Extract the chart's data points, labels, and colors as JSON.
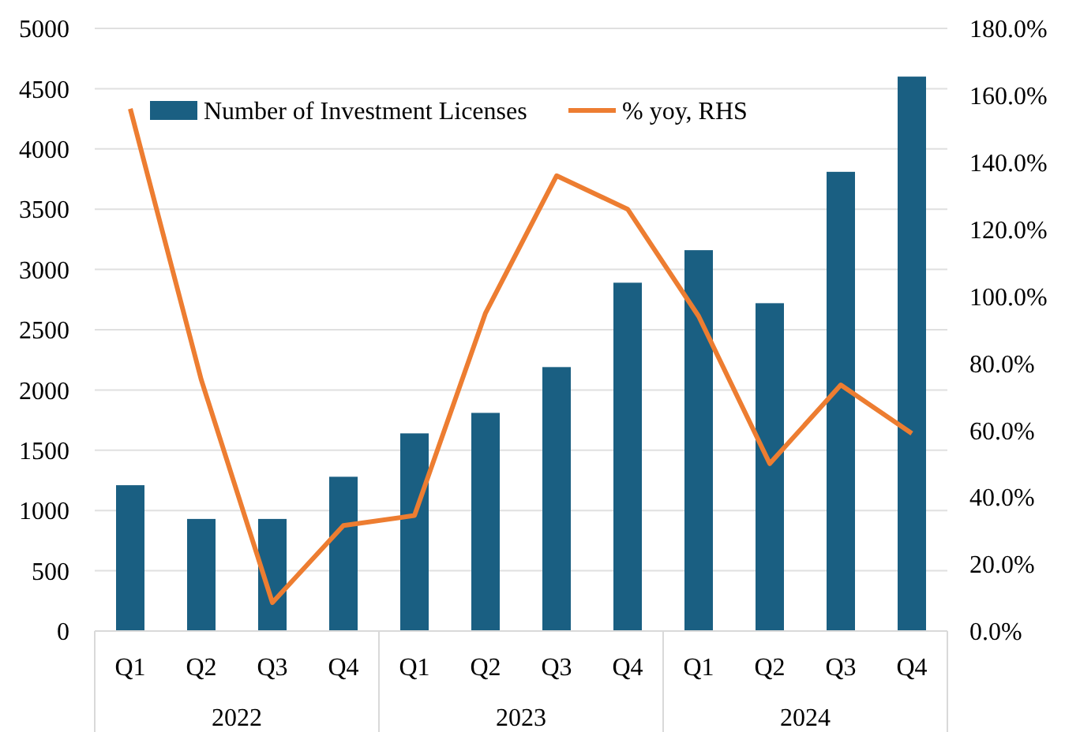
{
  "chart_data": {
    "type": "bar",
    "categories": [
      "Q1",
      "Q2",
      "Q3",
      "Q4",
      "Q1",
      "Q2",
      "Q3",
      "Q4",
      "Q1",
      "Q2",
      "Q3",
      "Q4"
    ],
    "annotations": [
      "2022",
      "2023",
      "2024"
    ],
    "series": [
      {
        "name": "Number of Investment Licenses",
        "color": "#1a5f82",
        "values": [
          1210,
          930,
          930,
          1280,
          1640,
          1810,
          2190,
          2890,
          3160,
          2720,
          3810,
          4600
        ]
      },
      {
        "name": "% yoy, RHS",
        "type": "line",
        "axis": "y2",
        "color": "#ed7d31",
        "values": [
          156,
          75,
          8.5,
          31.5,
          34.5,
          95,
          136,
          126,
          94,
          50,
          73.5,
          59
        ]
      }
    ],
    "ylim": [
      0,
      5000
    ],
    "yticks": [
      0,
      500,
      1000,
      1500,
      2000,
      2500,
      3000,
      3500,
      4000,
      4500,
      5000
    ],
    "y2lim": [
      0,
      180
    ],
    "y2ticks": [
      {
        "value": 0,
        "label": "0.0%"
      },
      {
        "value": 20,
        "label": "20.0%"
      },
      {
        "value": 40,
        "label": "40.0%"
      },
      {
        "value": 60,
        "label": "60.0%"
      },
      {
        "value": 80,
        "label": "80.0%"
      },
      {
        "value": 100,
        "label": "100.0%"
      },
      {
        "value": 120,
        "label": "120.0%"
      },
      {
        "value": 140,
        "label": "140.0%"
      },
      {
        "value": 160,
        "label": "160.0%"
      },
      {
        "value": 180,
        "label": "180.0%"
      }
    ],
    "grid": "y",
    "legend": "top left",
    "line_style": "solid",
    "marker": "none"
  }
}
